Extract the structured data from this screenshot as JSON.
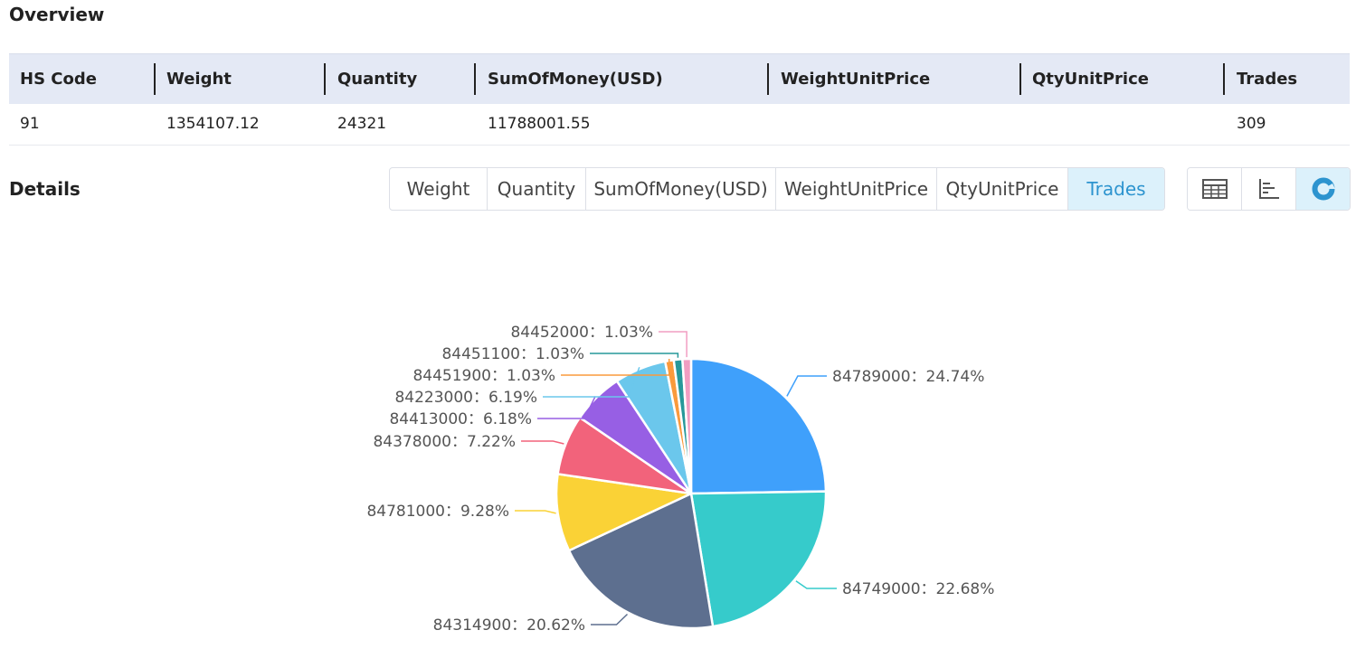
{
  "overview": {
    "title": "Overview",
    "headers": [
      "HS Code",
      "Weight",
      "Quantity",
      "SumOfMoney(USD)",
      "WeightUnitPrice",
      "QtyUnitPrice",
      "Trades"
    ],
    "row": [
      "91",
      "1354107.12",
      "24321",
      "11788001.55",
      "",
      "",
      "309"
    ]
  },
  "details": {
    "title": "Details",
    "tabs": [
      "Weight",
      "Quantity",
      "SumOfMoney(USD)",
      "WeightUnitPrice",
      "QtyUnitPrice",
      "Trades"
    ],
    "active_tab": "Trades",
    "views": [
      {
        "icon": "table-icon",
        "active": false
      },
      {
        "icon": "bar-chart-icon",
        "active": false
      },
      {
        "icon": "pie-chart-icon",
        "active": true
      }
    ]
  },
  "colors": {
    "header_bg": "#e4e9f5",
    "active_tab_bg": "#dcf1fb",
    "active_tab_text": "#2d94cf"
  },
  "chart_data": {
    "type": "pie",
    "title": "",
    "label_separator": "：",
    "slices": [
      {
        "name": "84789000",
        "value": 24.74,
        "label": "24.74%",
        "color": "#3fa0fb"
      },
      {
        "name": "84749000",
        "value": 22.68,
        "label": "22.68%",
        "color": "#36cbcb"
      },
      {
        "name": "84314900",
        "value": 20.62,
        "label": "20.62%",
        "color": "#5d6f8f"
      },
      {
        "name": "84781000",
        "value": 9.28,
        "label": "9.28%",
        "color": "#fad236"
      },
      {
        "name": "84378000",
        "value": 7.22,
        "label": "7.22%",
        "color": "#f2637b"
      },
      {
        "name": "84413000",
        "value": 6.18,
        "label": "6.18%",
        "color": "#975fe4"
      },
      {
        "name": "84223000",
        "value": 6.19,
        "label": "6.19%",
        "color": "#6bc7ec"
      },
      {
        "name": "84451900",
        "value": 1.03,
        "label": "1.03%",
        "color": "#fa9a3c"
      },
      {
        "name": "84451100",
        "value": 1.03,
        "label": "1.03%",
        "color": "#27989a"
      },
      {
        "name": "84452000",
        "value": 1.03,
        "label": "1.03%",
        "color": "#f19ec2"
      }
    ]
  }
}
